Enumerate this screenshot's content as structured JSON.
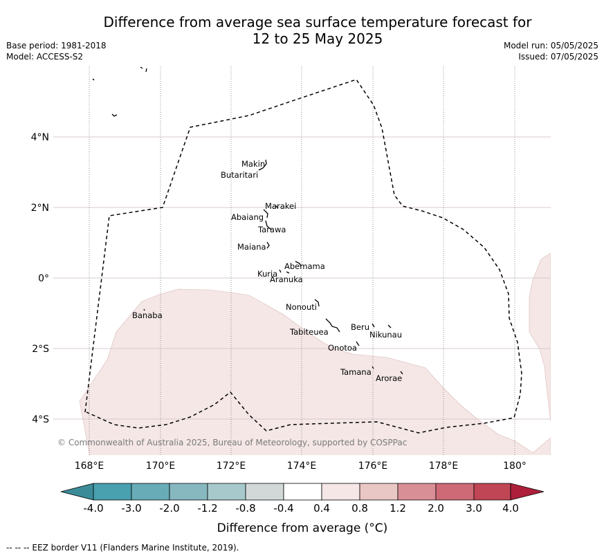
{
  "title_line1": "Difference from average sea surface temperature forecast for",
  "title_line2": "12 to 25 May 2025",
  "base_period": "Base period: 1981-2018",
  "model": "Model: ACCESS-S2",
  "model_run": "Model run: 05/05/2025",
  "issued": "Issued: 07/05/2025",
  "copyright": "© Commonwealth of Australia 2025, Bureau of Meteorology, supported by COSPPac",
  "lon_ticks": [
    "168°E",
    "170°E",
    "172°E",
    "174°E",
    "176°E",
    "178°E",
    "180°"
  ],
  "lat_ticks": [
    "4°N",
    "2°N",
    "0°",
    "2°S",
    "4°S"
  ],
  "islands": [
    "Makin",
    "Butaritari",
    "Marakei",
    "Abaiang",
    "Tarawa",
    "Maiana",
    "Abemama",
    "Kuria",
    "Aranuka",
    "Nonouti",
    "Banaba",
    "Beru",
    "Nikunau",
    "Tabiteuea",
    "Onotoa",
    "Tamana",
    "Arorae"
  ],
  "colorbar": {
    "labels": [
      "-4.0",
      "-3.0",
      "-2.0",
      "-1.2",
      "-0.8",
      "-0.4",
      "0.4",
      "0.8",
      "1.2",
      "2.0",
      "3.0",
      "4.0"
    ],
    "colors": [
      "#3b8c98",
      "#49a0af",
      "#68acb8",
      "#87b8c0",
      "#a8c9cc",
      "#d2d8d8",
      "#ffffff",
      "#f5e7e6",
      "#e9c7c4",
      "#d98f96",
      "#ce6a75",
      "#c04655",
      "#ad1f3a"
    ],
    "label": "Difference from average (°C)"
  },
  "footer": "-- -- -- EEZ border V11 (Flanders Marine Institute, 2019)."
}
